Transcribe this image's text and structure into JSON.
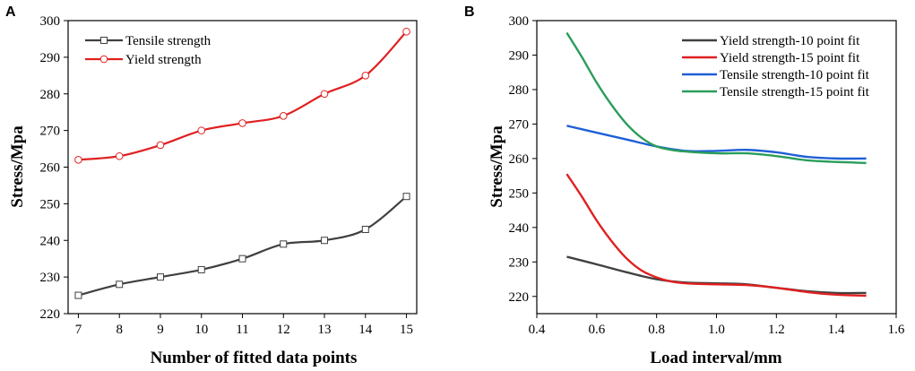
{
  "chart_data": [
    {
      "type": "line",
      "panel_label": "A",
      "xlabel": "Number of fitted data points",
      "ylabel": "Stress/Mpa",
      "xlim": [
        6.75,
        15.25
      ],
      "ylim": [
        220,
        300
      ],
      "xticks": [
        7,
        8,
        9,
        10,
        11,
        12,
        13,
        14,
        15
      ],
      "yticks": [
        220,
        230,
        240,
        250,
        260,
        270,
        280,
        290,
        300
      ],
      "x": [
        7,
        8,
        9,
        10,
        11,
        12,
        13,
        14,
        15
      ],
      "legend_position": "top-left",
      "series": [
        {
          "name": "Tensile strength",
          "color": "#404040",
          "marker": "square",
          "values": [
            225,
            228,
            230,
            232,
            235,
            239,
            240,
            243,
            252
          ]
        },
        {
          "name": "Yield strength",
          "color": "#e02020",
          "marker": "circle",
          "values": [
            262,
            263,
            266,
            270,
            272,
            274,
            280,
            285,
            297
          ]
        }
      ]
    },
    {
      "type": "line",
      "panel_label": "B",
      "xlabel": "Load interval/mm",
      "ylabel": "Stress/Mpa",
      "xlim": [
        0.4,
        1.6
      ],
      "ylim": [
        215,
        300
      ],
      "xticks": [
        0.4,
        0.6,
        0.8,
        1.0,
        1.2,
        1.4,
        1.6
      ],
      "xtick_labels": [
        "0.4",
        "0.6",
        "0.8",
        "1.0",
        "1.2",
        "1.4",
        "1.6"
      ],
      "yticks": [
        220,
        230,
        240,
        250,
        260,
        270,
        280,
        290,
        300
      ],
      "legend_position": "top-right",
      "series": [
        {
          "name": "Yield strength-10 point fit",
          "color": "#404040",
          "x": [
            0.5,
            0.6,
            0.7,
            0.8,
            0.9,
            1.0,
            1.1,
            1.2,
            1.3,
            1.4,
            1.5
          ],
          "values": [
            231.5,
            229.3,
            227,
            225,
            224,
            223.8,
            223.5,
            222.5,
            221.5,
            221,
            221
          ]
        },
        {
          "name": "Yield strength-15 point fit",
          "color": "#e02020",
          "x": [
            0.5,
            0.55,
            0.6,
            0.65,
            0.7,
            0.75,
            0.8,
            0.85,
            0.9,
            1.0,
            1.1,
            1.2,
            1.3,
            1.4,
            1.5
          ],
          "values": [
            255.5,
            249,
            242,
            236,
            231,
            227.5,
            225.5,
            224.3,
            223.8,
            223.5,
            223.3,
            222.5,
            221.3,
            220.5,
            220.2
          ]
        },
        {
          "name": "Tensile strength-10 point fit",
          "color": "#1f5fd6",
          "x": [
            0.5,
            0.6,
            0.7,
            0.8,
            0.9,
            1.0,
            1.1,
            1.2,
            1.3,
            1.4,
            1.5
          ],
          "values": [
            269.5,
            267.5,
            265.5,
            263.5,
            262.2,
            262.2,
            262.5,
            261.8,
            260.5,
            260,
            260
          ]
        },
        {
          "name": "Tensile strength-15 point fit",
          "color": "#2a9d5a",
          "x": [
            0.5,
            0.55,
            0.6,
            0.65,
            0.7,
            0.75,
            0.8,
            0.85,
            0.9,
            1.0,
            1.1,
            1.2,
            1.3,
            1.4,
            1.5
          ],
          "values": [
            296.5,
            289.5,
            282,
            275.5,
            270,
            266,
            263.5,
            262.5,
            262,
            261.5,
            261.5,
            260.7,
            259.5,
            259,
            258.7
          ]
        }
      ]
    }
  ]
}
